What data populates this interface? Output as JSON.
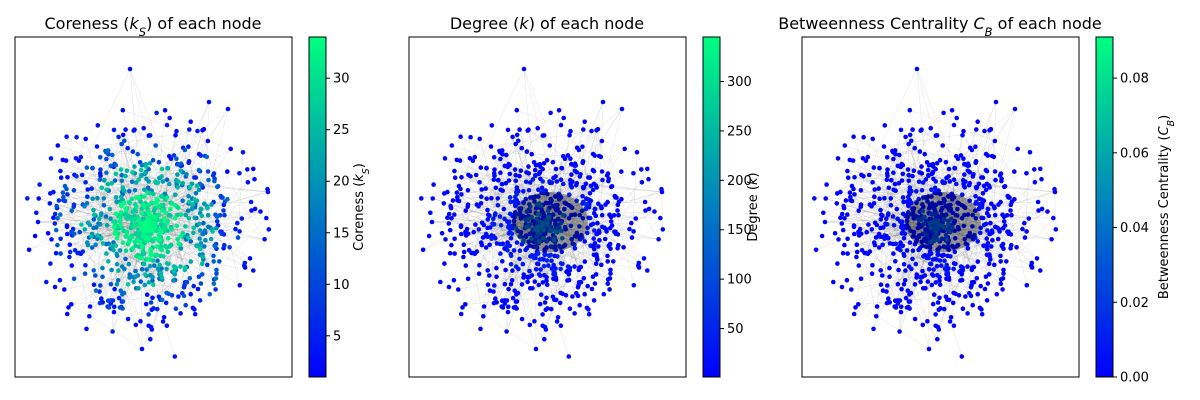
{
  "chart_data": [
    {
      "type": "scatter",
      "kind": "network-graph",
      "title": "Coreness (k_S) of each node",
      "title_parts": {
        "pre": "Coreness (",
        "var": "k",
        "sub": "S",
        "post": ") of each node"
      },
      "colorbar": {
        "label": "Coreness (k_S)",
        "label_parts": {
          "pre": "Coreness (",
          "var": "k",
          "sub": "S",
          "post": ")"
        },
        "range": [
          1,
          34
        ],
        "ticks": [
          5,
          10,
          15,
          20,
          25,
          30
        ],
        "tick_labels": [
          "5",
          "10",
          "15",
          "20",
          "25",
          "30"
        ],
        "colormap": [
          "#0000ff",
          "#00ff80"
        ]
      },
      "node_color_profile": "coreness"
    },
    {
      "type": "scatter",
      "kind": "network-graph",
      "title": "Degree (k) of each node",
      "title_parts": {
        "pre": "Degree (",
        "var": "k",
        "sub": "",
        "post": ") of each node"
      },
      "colorbar": {
        "label": "Degree (k)",
        "label_parts": {
          "pre": "Degree (",
          "var": "k",
          "sub": "",
          "post": ")"
        },
        "range": [
          1,
          345
        ],
        "ticks": [
          50,
          100,
          150,
          200,
          250,
          300
        ],
        "tick_labels": [
          "50",
          "100",
          "150",
          "200",
          "250",
          "300"
        ],
        "colormap": [
          "#0000ff",
          "#00ff80"
        ]
      },
      "node_color_profile": "degree"
    },
    {
      "type": "scatter",
      "kind": "network-graph",
      "title": "Betweenness Centrality C_B of each node",
      "title_parts": {
        "pre": "Betweenness Centrality ",
        "var": "C",
        "sub": "B",
        "post": " of each node"
      },
      "colorbar": {
        "label": "Betweenness Centrality (C_B)",
        "label_parts": {
          "pre": "Betweenness Centrality (",
          "var": "C",
          "sub": "B",
          "post": ")"
        },
        "range": [
          0,
          0.091
        ],
        "ticks": [
          0.0,
          0.02,
          0.04,
          0.06,
          0.08
        ],
        "tick_labels": [
          "0.00",
          "0.02",
          "0.04",
          "0.06",
          "0.08"
        ],
        "colormap": [
          "#0000ff",
          "#00ff80"
        ]
      },
      "node_color_profile": "betweenness"
    }
  ]
}
